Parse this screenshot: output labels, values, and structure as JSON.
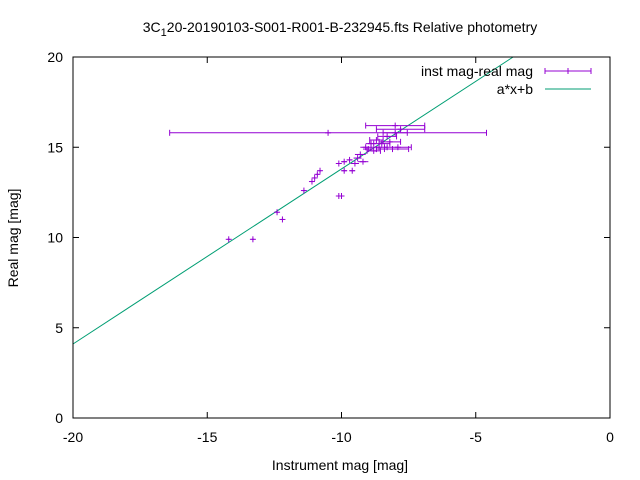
{
  "chart_data": {
    "type": "scatter",
    "title_parts": {
      "prefix": "3C",
      "subscript": "1",
      "suffix": "20-20190103-S001-R001-B-232945.fts Relative photometry"
    },
    "xlabel": "Instrument mag [mag]",
    "ylabel": "Real mag [mag]",
    "xlim": [
      -20,
      0
    ],
    "ylim": [
      0,
      20
    ],
    "xticks": [
      -20,
      -15,
      -10,
      -5,
      0
    ],
    "yticks": [
      0,
      5,
      10,
      15,
      20
    ],
    "legend_position": "top-right",
    "grid": false,
    "series": [
      {
        "name": "inst mag-real mag",
        "kind": "points-with-x-errorbars",
        "color": "#9400d3",
        "points": [
          {
            "x": -14.2,
            "y": 9.9,
            "xerr": 0.05
          },
          {
            "x": -13.3,
            "y": 9.9,
            "xerr": 0.05
          },
          {
            "x": -12.4,
            "y": 11.4,
            "xerr": 0.05
          },
          {
            "x": -12.2,
            "y": 11.0,
            "xerr": 0.05
          },
          {
            "x": -11.4,
            "y": 12.6,
            "xerr": 0.05
          },
          {
            "x": -11.1,
            "y": 13.1,
            "xerr": 0.05
          },
          {
            "x": -11.0,
            "y": 13.3,
            "xerr": 0.05
          },
          {
            "x": -10.9,
            "y": 13.5,
            "xerr": 0.05
          },
          {
            "x": -10.8,
            "y": 13.7,
            "xerr": 0.05
          },
          {
            "x": -10.1,
            "y": 12.3,
            "xerr": 0.05
          },
          {
            "x": -10.0,
            "y": 12.3,
            "xerr": 0.05
          },
          {
            "x": -10.1,
            "y": 14.1,
            "xerr": 0.1
          },
          {
            "x": -9.9,
            "y": 14.2,
            "xerr": 0.1
          },
          {
            "x": -9.7,
            "y": 14.3,
            "xerr": 0.1
          },
          {
            "x": -9.9,
            "y": 13.7,
            "xerr": 0.1
          },
          {
            "x": -9.6,
            "y": 13.7,
            "xerr": 0.1
          },
          {
            "x": -9.5,
            "y": 14.1,
            "xerr": 0.15
          },
          {
            "x": -9.4,
            "y": 14.4,
            "xerr": 0.15
          },
          {
            "x": -9.3,
            "y": 14.6,
            "xerr": 0.2
          },
          {
            "x": -9.2,
            "y": 14.2,
            "xerr": 0.2
          },
          {
            "x": -9.1,
            "y": 15.0,
            "xerr": 0.2
          },
          {
            "x": -9.0,
            "y": 14.9,
            "xerr": 0.2
          },
          {
            "x": -8.9,
            "y": 15.2,
            "xerr": 0.2
          },
          {
            "x": -8.8,
            "y": 14.8,
            "xerr": 0.25
          },
          {
            "x": -8.7,
            "y": 15.4,
            "xerr": 0.25
          },
          {
            "x": -8.6,
            "y": 15.0,
            "xerr": 0.3
          },
          {
            "x": -8.5,
            "y": 15.2,
            "xerr": 0.3
          },
          {
            "x": -8.4,
            "y": 14.9,
            "xerr": 0.3
          },
          {
            "x": -8.3,
            "y": 15.6,
            "xerr": 0.35
          },
          {
            "x": -8.2,
            "y": 15.3,
            "xerr": 0.4
          },
          {
            "x": -8.0,
            "y": 15.8,
            "xerr": 0.45
          },
          {
            "x": -7.9,
            "y": 15.0,
            "xerr": 0.5
          },
          {
            "x": -8.1,
            "y": 14.9,
            "xerr": 0.6
          },
          {
            "x": -7.8,
            "y": 16.0,
            "xerr": 0.9
          },
          {
            "x": -8.0,
            "y": 16.2,
            "xerr": 1.1
          },
          {
            "x": -10.5,
            "y": 15.8,
            "xerr": 5.9
          }
        ]
      },
      {
        "name": "a*x+b",
        "kind": "line",
        "color": "#009e73",
        "a": 0.97,
        "b": 23.5
      }
    ]
  }
}
